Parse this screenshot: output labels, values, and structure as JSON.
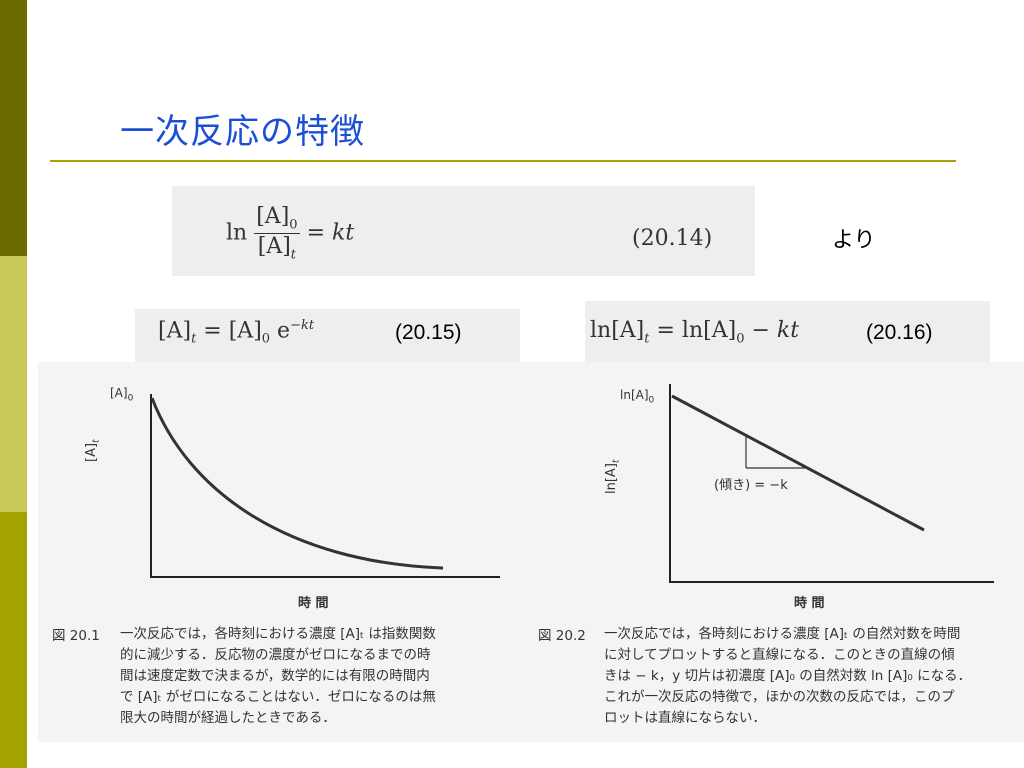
{
  "colors": {
    "title": "#1a4fd6",
    "sidebar_dark": "#6b6b00",
    "sidebar_light": "#c9c957",
    "sidebar_mid": "#a2a200",
    "rule": "#a5a400"
  },
  "slide": {
    "title": "一次反応の特徴"
  },
  "eq1": {
    "ln": "ln",
    "num": "[A]",
    "num_sub": "0",
    "den": "[A]",
    "den_sub": "t",
    "rhs": "= kt",
    "number": "(20.14)",
    "suffix": "より"
  },
  "eq2": {
    "lhs": "[A]",
    "lhs_sub": "t",
    "mid": " = [A]",
    "mid_sub": "0",
    "e": " e",
    "exp": "−kt",
    "number": "(20.15)"
  },
  "eq3": {
    "lhs": "ln[A]",
    "lhs_sub": "t",
    "mid": " = ln[A]",
    "mid_sub": "0",
    "rhs": " − kt",
    "number": "(20.16)"
  },
  "fig1": {
    "y_top_label": "[A]",
    "y_top_sub": "0",
    "y_axis": "[A]",
    "y_axis_sub": "t",
    "x_axis": "時 間",
    "caption_label": "図 20.1",
    "caption_lines": [
      "一次反応では，各時刻における濃度 [A]ₜ は指数関数",
      "的に減少する．反応物の濃度がゼロになるまでの時",
      "間は速度定数で決まるが，数学的には有限の時間内",
      "で [A]ₜ がゼロになることはない．ゼロになるのは無",
      "限大の時間が経過したときである．"
    ]
  },
  "fig2": {
    "y_top_label": "ln[A]",
    "y_top_sub": "0",
    "y_axis": "ln[A]",
    "y_axis_sub": "t",
    "slope_label": "(傾き) = −k",
    "x_axis": "時 間",
    "caption_label": "図 20.2",
    "caption_lines": [
      "一次反応では，各時刻における濃度 [A]ₜ の自然対数を時間",
      "に対してプロットすると直線になる．このときの直線の傾",
      "きは − k，y 切片は初濃度 [A]₀ の自然対数 ln [A]₀ になる．",
      "これが一次反応の特徴で，ほかの次数の反応では，このプ",
      "ロットは直線にならない．"
    ]
  }
}
